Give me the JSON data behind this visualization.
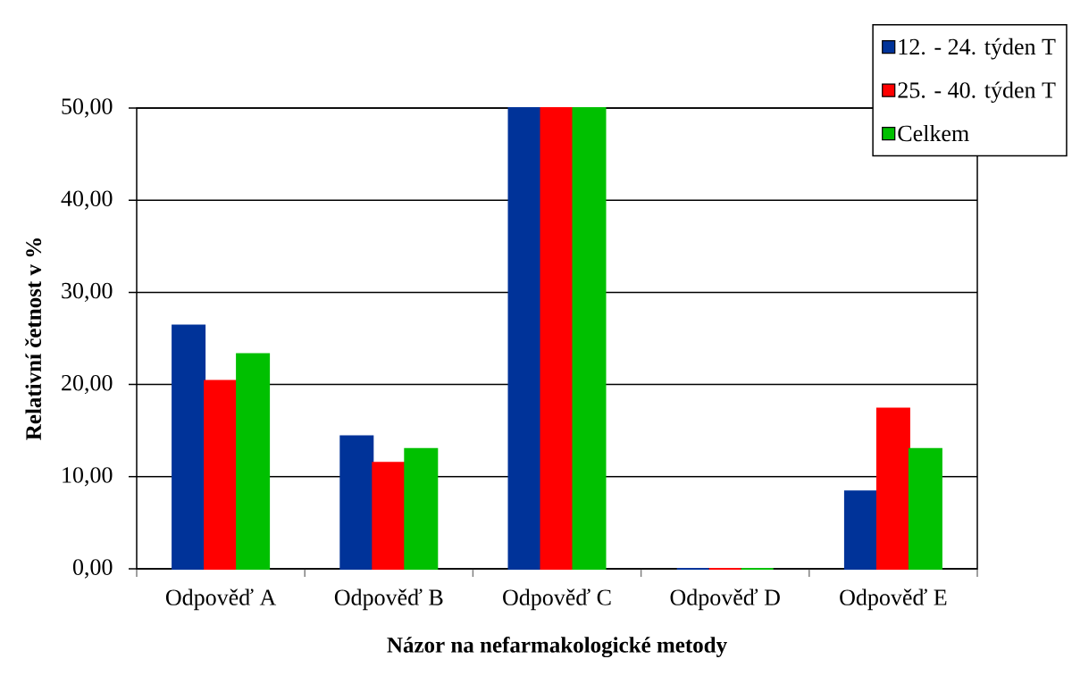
{
  "chart_data": {
    "type": "bar",
    "xlabel": "Názor na nefarmakologické metody",
    "ylabel": "Relativní četnost v %",
    "categories": [
      "Odpověď A",
      "Odpověď B",
      "Odpověď C",
      "Odpověď D",
      "Odpověď E"
    ],
    "series": [
      {
        "name": "12. - 24. týden T",
        "color": "#003399",
        "values": [
          26.4,
          14.4,
          50,
          0,
          8.4
        ]
      },
      {
        "name": "25. - 40. týden T",
        "color": "#ff0000",
        "values": [
          20.4,
          11.5,
          50,
          0,
          17.4
        ]
      },
      {
        "name": "Celkem",
        "color": "#00c000",
        "values": [
          23.3,
          13.0,
          50,
          0,
          13.0
        ]
      }
    ],
    "ylim": [
      0,
      50
    ],
    "yticks": [
      {
        "value": 0,
        "label": "0,00"
      },
      {
        "value": 10,
        "label": "10,00"
      },
      {
        "value": 20,
        "label": "20,00"
      },
      {
        "value": 30,
        "label": "30,00"
      },
      {
        "value": 40,
        "label": "40,00"
      },
      {
        "value": 50,
        "label": "50,00"
      }
    ],
    "grid": "y",
    "legend": "top right"
  }
}
